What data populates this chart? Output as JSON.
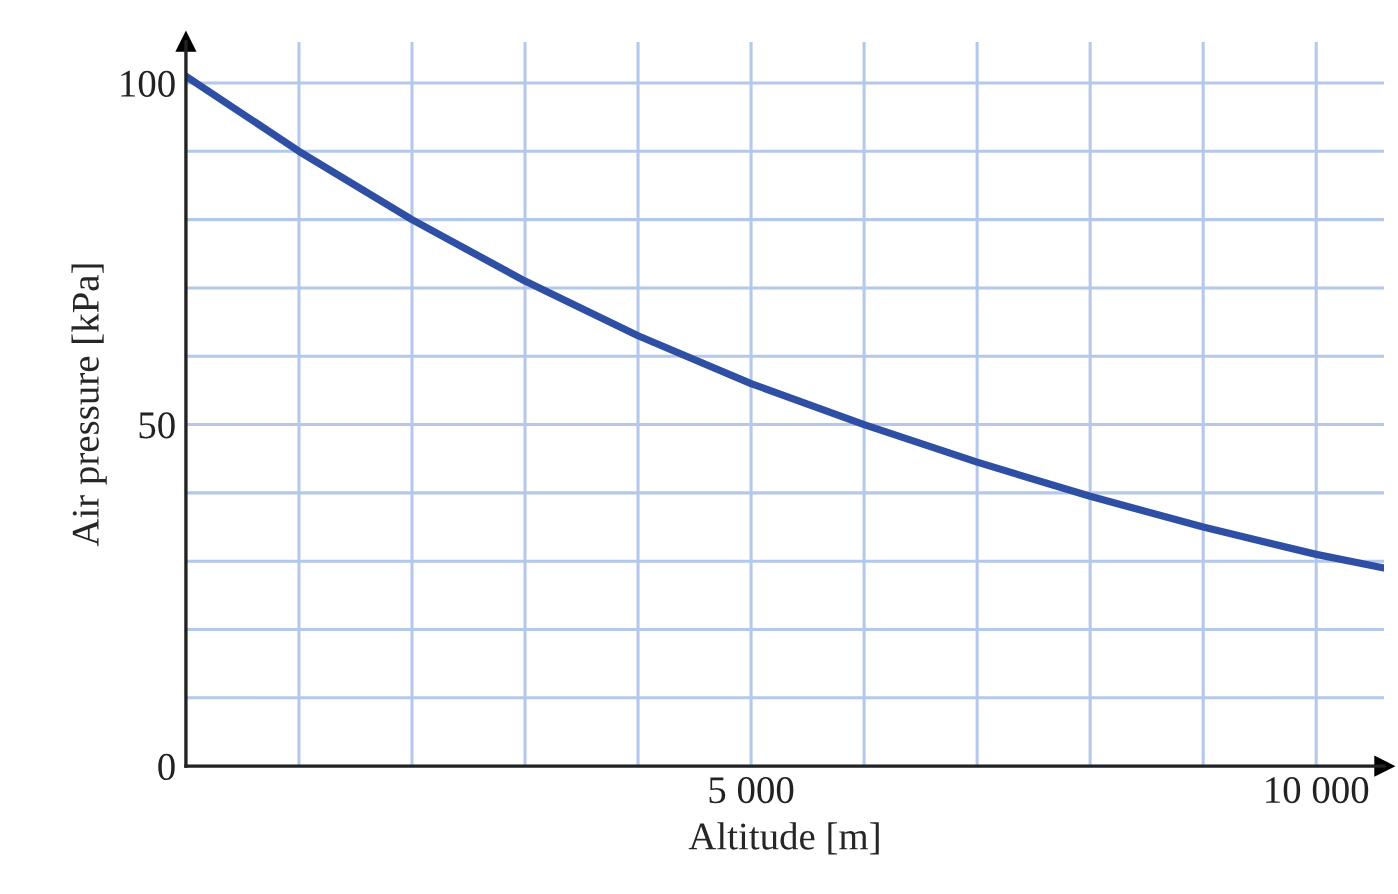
{
  "chart_data": {
    "type": "line",
    "xlabel": "Altitude [m]",
    "ylabel": "Air pressure [kPa]",
    "x": [
      0,
      1000,
      2000,
      3000,
      4000,
      5000,
      6000,
      7000,
      8000,
      9000,
      10000,
      10600
    ],
    "series": [
      {
        "color": "#2e4fa3",
        "values": [
          101,
          90,
          80,
          71,
          63,
          56,
          50,
          44.5,
          39.5,
          35,
          31,
          29
        ]
      }
    ],
    "xlim": [
      0,
      10600
    ],
    "ylim": [
      0,
      106
    ],
    "xticks": [
      {
        "value": 1000,
        "label": null
      },
      {
        "value": 2000,
        "label": null
      },
      {
        "value": 3000,
        "label": null
      },
      {
        "value": 4000,
        "label": null
      },
      {
        "value": 5000,
        "label": "5 000"
      },
      {
        "value": 6000,
        "label": null
      },
      {
        "value": 7000,
        "label": null
      },
      {
        "value": 8000,
        "label": null
      },
      {
        "value": 9000,
        "label": null
      },
      {
        "value": 10000,
        "label": "10 000"
      }
    ],
    "yticks": [
      0,
      {
        "value": 10,
        "label": null
      },
      {
        "value": 20,
        "label": null
      },
      {
        "value": 30,
        "label": null
      },
      {
        "value": 40,
        "label": null
      },
      50,
      {
        "value": 60,
        "label": null
      },
      {
        "value": 70,
        "label": null
      },
      {
        "value": 80,
        "label": null
      },
      {
        "value": 90,
        "label": null
      },
      100
    ],
    "grid": true,
    "marker": "none",
    "line_style": "solid"
  }
}
